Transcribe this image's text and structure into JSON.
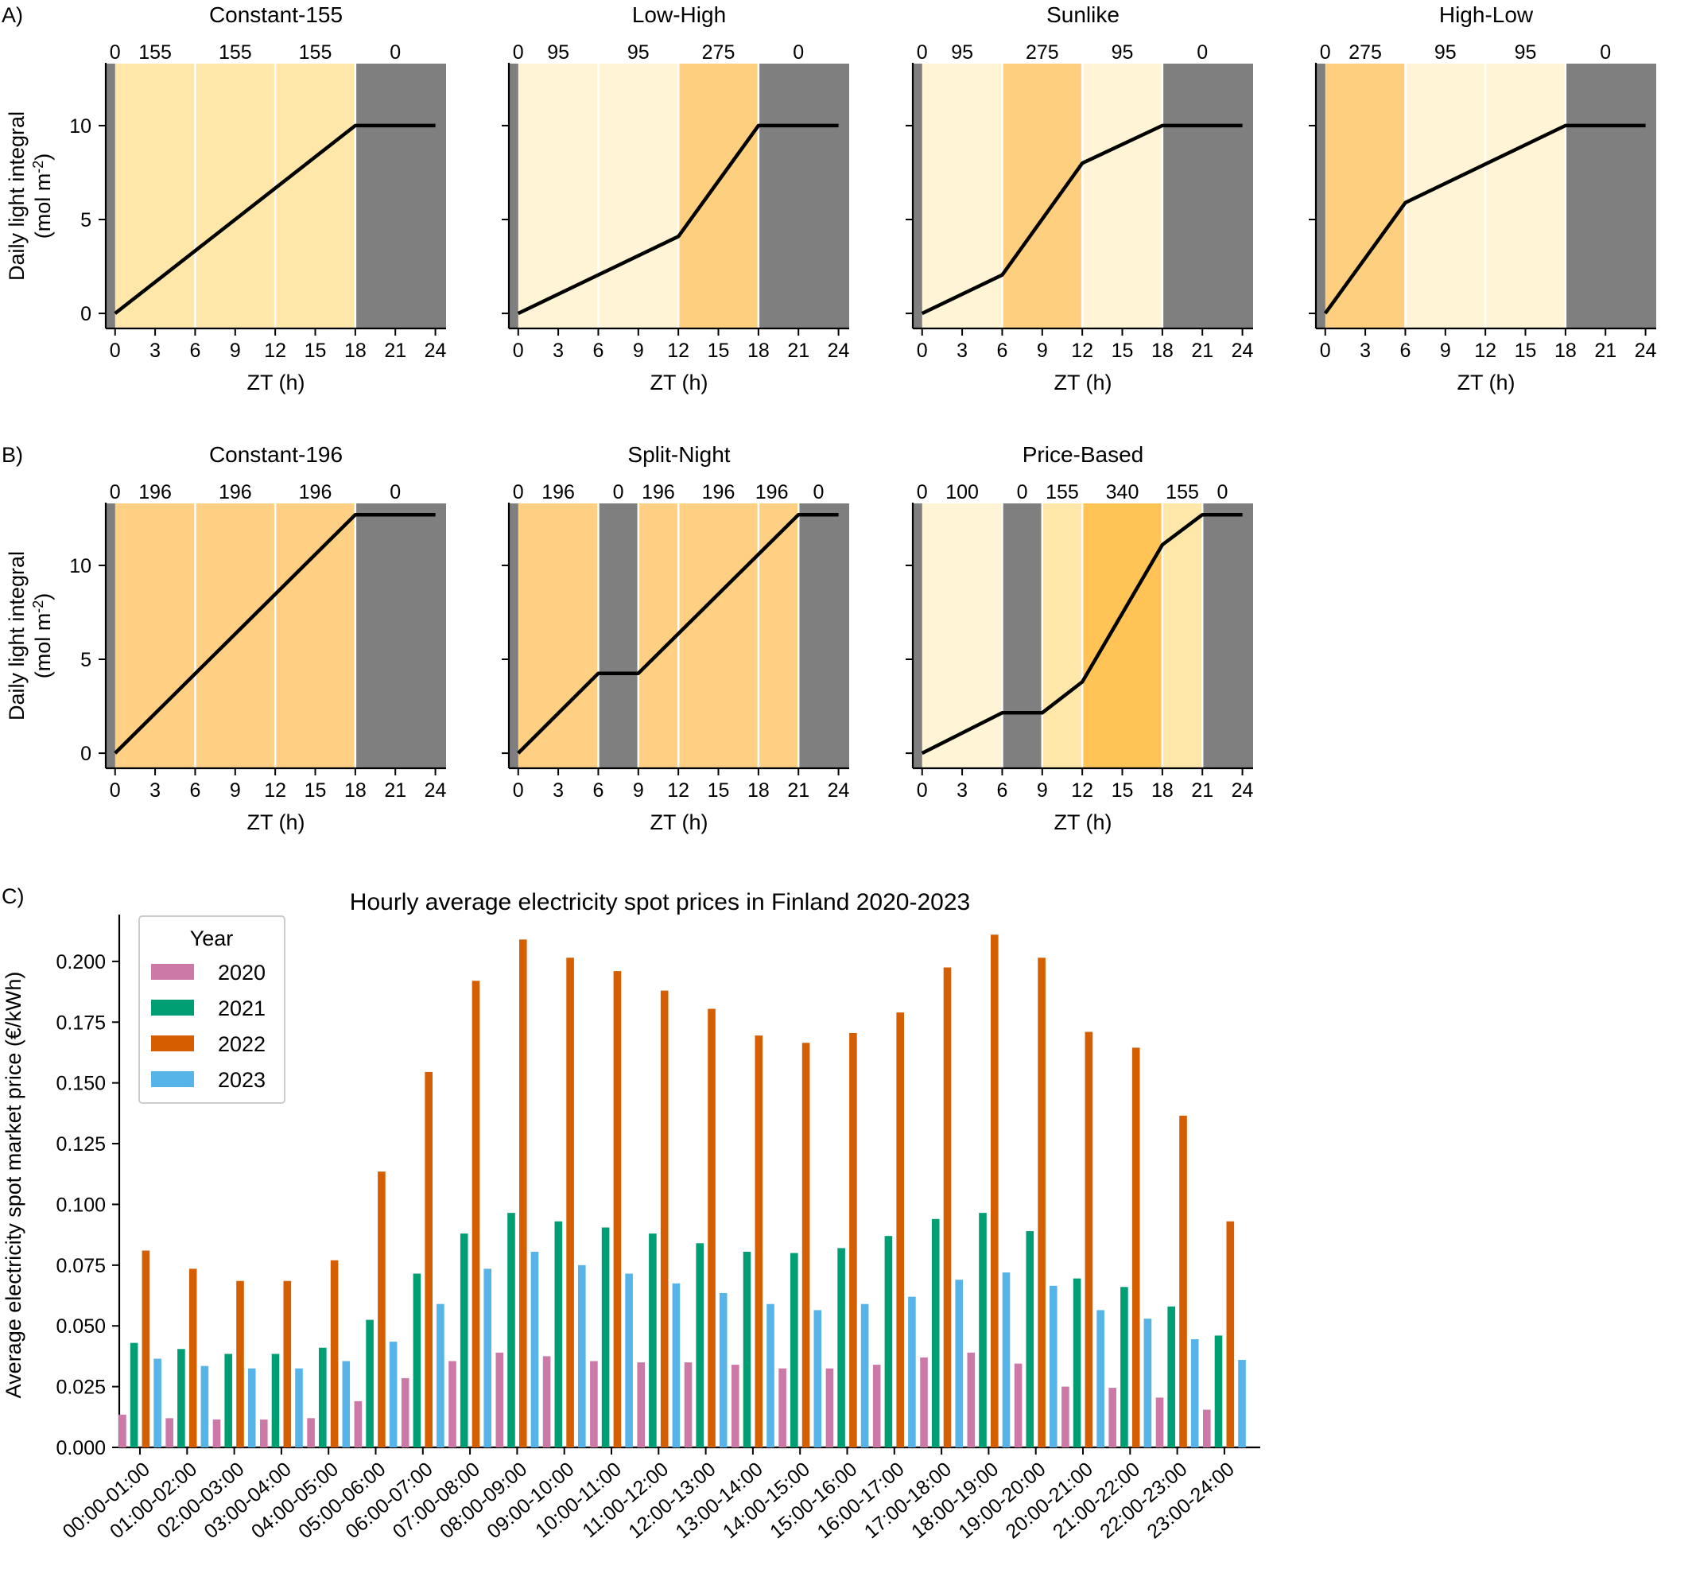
{
  "colors": {
    "dark": "#7f7f7f",
    "i95": "#fff4d6",
    "i100": "#fff4d6",
    "i155": "#ffe6a9",
    "i196": "#ffd083",
    "i275": "#ffcf80",
    "i340": "#ffc455",
    "line": "#000000",
    "s2020": "#cc79a7",
    "s2021": "#009e73",
    "s2022": "#d55e00",
    "s2023": "#56b4e9"
  },
  "light_panels": [
    {
      "panel_letter": "A)",
      "title": "Constant-155",
      "segments": [
        {
          "start": 0,
          "end": 18,
          "intensity": 155,
          "label": "155"
        }
      ],
      "band_labels": [
        {
          "x": 0,
          "text": "0"
        },
        {
          "x": 3,
          "text": "155"
        },
        {
          "x": 9,
          "text": "155"
        },
        {
          "x": 15,
          "text": "155"
        },
        {
          "x": 21,
          "text": "0"
        }
      ],
      "dli": [
        [
          0,
          0
        ],
        [
          18,
          10
        ],
        [
          24,
          10
        ]
      ],
      "dividers": [
        6,
        12,
        18
      ],
      "ylim": [
        -0.8,
        13.3
      ]
    },
    {
      "title": "Low-High",
      "segments": [
        {
          "start": 0,
          "end": 12,
          "intensity": 95
        },
        {
          "start": 12,
          "end": 18,
          "intensity": 275
        }
      ],
      "band_labels": [
        {
          "x": 0,
          "text": "0"
        },
        {
          "x": 3,
          "text": "95"
        },
        {
          "x": 9,
          "text": "95"
        },
        {
          "x": 15,
          "text": "275"
        },
        {
          "x": 21,
          "text": "0"
        }
      ],
      "dli": [
        [
          0,
          0
        ],
        [
          12,
          4.1
        ],
        [
          18,
          10
        ],
        [
          24,
          10
        ]
      ],
      "dividers": [
        6,
        12,
        18
      ],
      "ylim": [
        -0.8,
        13.3
      ]
    },
    {
      "title": "Sunlike",
      "segments": [
        {
          "start": 0,
          "end": 6,
          "intensity": 95
        },
        {
          "start": 6,
          "end": 12,
          "intensity": 275
        },
        {
          "start": 12,
          "end": 18,
          "intensity": 95
        }
      ],
      "band_labels": [
        {
          "x": 0,
          "text": "0"
        },
        {
          "x": 3,
          "text": "95"
        },
        {
          "x": 9,
          "text": "275"
        },
        {
          "x": 15,
          "text": "95"
        },
        {
          "x": 21,
          "text": "0"
        }
      ],
      "dli": [
        [
          0,
          0
        ],
        [
          6,
          2.05
        ],
        [
          12,
          8
        ],
        [
          18,
          10
        ],
        [
          24,
          10
        ]
      ],
      "dividers": [
        6,
        12,
        18
      ],
      "ylim": [
        -0.8,
        13.3
      ]
    },
    {
      "title": "High-Low",
      "segments": [
        {
          "start": 0,
          "end": 6,
          "intensity": 275
        },
        {
          "start": 6,
          "end": 18,
          "intensity": 95
        }
      ],
      "band_labels": [
        {
          "x": 0,
          "text": "0"
        },
        {
          "x": 3,
          "text": "275"
        },
        {
          "x": 9,
          "text": "95"
        },
        {
          "x": 15,
          "text": "95"
        },
        {
          "x": 21,
          "text": "0"
        }
      ],
      "dli": [
        [
          0,
          0
        ],
        [
          6,
          5.9
        ],
        [
          18,
          10
        ],
        [
          24,
          10
        ]
      ],
      "dividers": [
        6,
        12,
        18
      ],
      "ylim": [
        -0.8,
        13.3
      ]
    },
    {
      "panel_letter": "B)",
      "title": "Constant-196",
      "segments": [
        {
          "start": 0,
          "end": 18,
          "intensity": 196
        }
      ],
      "band_labels": [
        {
          "x": 0,
          "text": "0"
        },
        {
          "x": 3,
          "text": "196"
        },
        {
          "x": 9,
          "text": "196"
        },
        {
          "x": 15,
          "text": "196"
        },
        {
          "x": 21,
          "text": "0"
        }
      ],
      "dli": [
        [
          0,
          0
        ],
        [
          18,
          12.7
        ],
        [
          24,
          12.7
        ]
      ],
      "dividers": [
        6,
        12,
        18
      ],
      "ylim": [
        -0.8,
        13.3
      ]
    },
    {
      "title": "Split-Night",
      "segments": [
        {
          "start": 0,
          "end": 6,
          "intensity": 196
        },
        {
          "start": 9,
          "end": 21,
          "intensity": 196
        }
      ],
      "band_labels": [
        {
          "x": 0,
          "text": "0"
        },
        {
          "x": 3,
          "text": "196"
        },
        {
          "x": 7.5,
          "text": "0"
        },
        {
          "x": 10.5,
          "text": "196"
        },
        {
          "x": 15,
          "text": "196"
        },
        {
          "x": 19,
          "text": "196"
        },
        {
          "x": 22.5,
          "text": "0"
        }
      ],
      "dli": [
        [
          0,
          0
        ],
        [
          6,
          4.25
        ],
        [
          9,
          4.25
        ],
        [
          21,
          12.7
        ],
        [
          24,
          12.7
        ]
      ],
      "dividers": [
        6,
        9,
        12,
        18,
        21
      ],
      "ylim": [
        -0.8,
        13.3
      ]
    },
    {
      "title": "Price-Based",
      "segments": [
        {
          "start": 0,
          "end": 6,
          "intensity": 100
        },
        {
          "start": 9,
          "end": 12,
          "intensity": 155
        },
        {
          "start": 12,
          "end": 18,
          "intensity": 340
        },
        {
          "start": 18,
          "end": 21,
          "intensity": 155
        }
      ],
      "band_labels": [
        {
          "x": 0,
          "text": "0"
        },
        {
          "x": 3,
          "text": "100"
        },
        {
          "x": 7.5,
          "text": "0"
        },
        {
          "x": 10.5,
          "text": "155"
        },
        {
          "x": 15,
          "text": "340"
        },
        {
          "x": 19.5,
          "text": "155"
        },
        {
          "x": 22.5,
          "text": "0"
        }
      ],
      "dli": [
        [
          0,
          0
        ],
        [
          6,
          2.15
        ],
        [
          9,
          2.15
        ],
        [
          12,
          3.8
        ],
        [
          18,
          11.1
        ],
        [
          21,
          12.7
        ],
        [
          24,
          12.7
        ]
      ],
      "dividers": [
        6,
        9,
        12,
        18,
        21
      ],
      "ylim": [
        -0.8,
        13.3
      ]
    }
  ],
  "light_axes": {
    "xlabel": "ZT (h)",
    "ylabel_line1": "Daily light integral",
    "ylabel_line2_prefix": "(mol m",
    "ylabel_line2_sup": "-2",
    "ylabel_line2_suffix": ")",
    "xticks": [
      "0",
      "3",
      "6",
      "9",
      "12",
      "15",
      "18",
      "21",
      "24"
    ],
    "yticks": [
      "0",
      "5",
      "10"
    ]
  },
  "chart_data": [
    {
      "type": "bar",
      "panel_letter": "C)",
      "title": "Hourly average electricity spot prices in Finland 2020-2023",
      "xlabel": "",
      "ylabel": "Average electricity spot market price (€/kWh)",
      "ylim": [
        0,
        0.216
      ],
      "yticks": [
        "0.000",
        "0.025",
        "0.050",
        "0.075",
        "0.100",
        "0.125",
        "0.150",
        "0.175",
        "0.200"
      ],
      "legend_title": "Year",
      "legend_position": "top-left",
      "categories": [
        "00:00-01:00",
        "01:00-02:00",
        "02:00-03:00",
        "03:00-04:00",
        "04:00-05:00",
        "05:00-06:00",
        "06:00-07:00",
        "07:00-08:00",
        "08:00-09:00",
        "09:00-10:00",
        "10:00-11:00",
        "11:00-12:00",
        "12:00-13:00",
        "13:00-14:00",
        "14:00-15:00",
        "15:00-16:00",
        "16:00-17:00",
        "17:00-18:00",
        "18:00-19:00",
        "19:00-20:00",
        "20:00-21:00",
        "21:00-22:00",
        "22:00-23:00",
        "23:00-24:00"
      ],
      "series": [
        {
          "name": "2020",
          "values": [
            0.0135,
            0.012,
            0.0115,
            0.0115,
            0.012,
            0.019,
            0.0285,
            0.0355,
            0.039,
            0.0375,
            0.0355,
            0.035,
            0.035,
            0.034,
            0.0325,
            0.0325,
            0.034,
            0.037,
            0.039,
            0.0345,
            0.025,
            0.0245,
            0.0205,
            0.0155
          ]
        },
        {
          "name": "2021",
          "values": [
            0.043,
            0.0405,
            0.0385,
            0.0385,
            0.041,
            0.0525,
            0.0715,
            0.088,
            0.0965,
            0.093,
            0.0905,
            0.088,
            0.084,
            0.0805,
            0.08,
            0.082,
            0.087,
            0.094,
            0.0965,
            0.089,
            0.0695,
            0.066,
            0.058,
            0.046
          ]
        },
        {
          "name": "2022",
          "values": [
            0.081,
            0.0735,
            0.0685,
            0.0685,
            0.077,
            0.1135,
            0.1545,
            0.192,
            0.209,
            0.2015,
            0.196,
            0.188,
            0.1805,
            0.1695,
            0.1665,
            0.1705,
            0.179,
            0.1975,
            0.211,
            0.2015,
            0.171,
            0.1645,
            0.1365,
            0.093
          ]
        },
        {
          "name": "2023",
          "values": [
            0.0365,
            0.0335,
            0.0325,
            0.0325,
            0.0355,
            0.0435,
            0.059,
            0.0735,
            0.0805,
            0.075,
            0.0715,
            0.0675,
            0.0635,
            0.059,
            0.0565,
            0.059,
            0.062,
            0.069,
            0.072,
            0.0665,
            0.0565,
            0.053,
            0.0445,
            0.036
          ]
        }
      ]
    }
  ]
}
